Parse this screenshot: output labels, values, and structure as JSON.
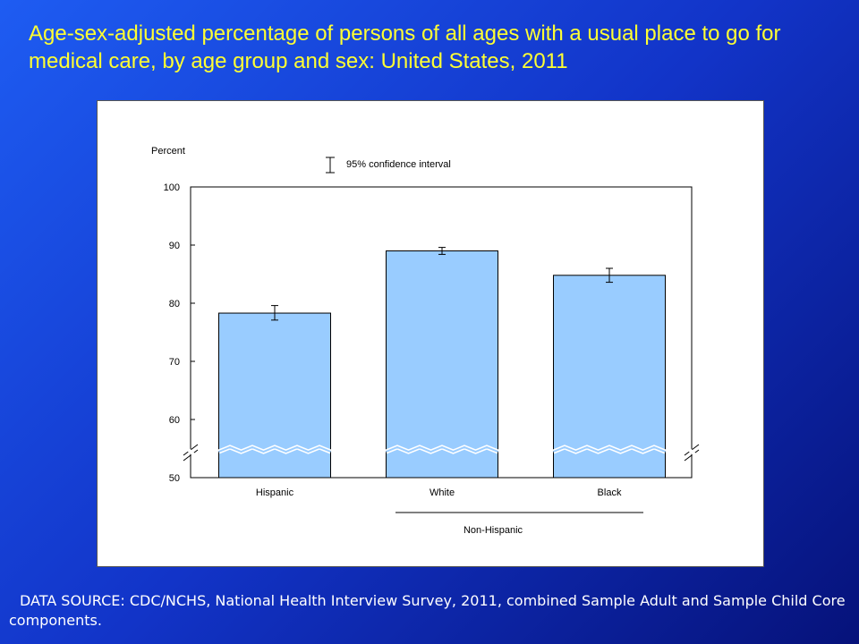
{
  "slide": {
    "title": "Age-sex-adjusted percentage of persons of all ages with a usual place to go for medical care, by age group and sex: United States, 2011",
    "footnote": "DATA SOURCE: CDC/NCHS, National Health Interview Survey, 2011, combined Sample Adult and Sample Child Core components."
  },
  "colors": {
    "title": "#ffff33",
    "bar_fill": "#99ccff",
    "bar_stroke": "#000000"
  },
  "chart_data": {
    "type": "bar",
    "title": "",
    "ylabel": "Percent",
    "xlabel": "",
    "categories": [
      "Hispanic",
      "White",
      "Black"
    ],
    "values": [
      78.3,
      89.0,
      84.8
    ],
    "ci_low": [
      77.1,
      88.4,
      83.6
    ],
    "ci_high": [
      79.6,
      89.6,
      86.0
    ],
    "ylim": [
      50,
      100
    ],
    "yticks": [
      "100",
      "90",
      "80",
      "70",
      "60",
      "50"
    ],
    "axis_break": true,
    "group_label": "Non-Hispanic",
    "legend_label": "95% confidence interval",
    "grid": false
  }
}
